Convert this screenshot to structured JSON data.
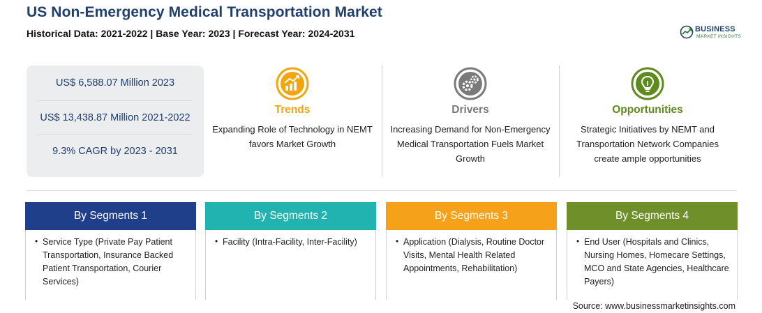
{
  "header": {
    "title": "US Non-Emergency Medical Transportation Market",
    "subtitle": "Historical Data: 2021-2022 | Base Year: 2023 | Forecast Year: 2024-2031"
  },
  "logo": {
    "line1": "BUSINESS",
    "line2": "MARKET INSIGHTS"
  },
  "stats": [
    {
      "text": "US$ 6,588.07 Million 2023"
    },
    {
      "text": "US$ 13,438.87 Million 2021-2022"
    },
    {
      "text": "9.3% CAGR by 2023 - 2031"
    }
  ],
  "info": [
    {
      "heading": "Trends",
      "icon": "trend-chart-icon",
      "color": "#f2a50c",
      "description": "Expanding Role of Technology in NEMT favors Market Growth"
    },
    {
      "heading": "Drivers",
      "icon": "gears-icon",
      "color": "#7a7a7a",
      "description": "Increasing Demand for Non-Emergency Medical Transportation Fuels Market Growth"
    },
    {
      "heading": "Opportunities",
      "icon": "lightbulb-icon",
      "color": "#5e8a1e",
      "description": "Strategic Initiatives by NEMT and Transportation Network Companies create ample opportunities"
    }
  ],
  "segments": [
    {
      "title": "By Segments 1",
      "color": "#1f3f8a",
      "bullet": "•",
      "text": "Service Type (Private Pay Patient Transportation, Insurance Backed Patient Transportation, Courier Services)"
    },
    {
      "title": "By Segments 2",
      "color": "#21b3b0",
      "bullet": "•",
      "text": "Facility (Intra-Facility, Inter-Facility)"
    },
    {
      "title": "By Segments 3",
      "color": "#f5a11a",
      "bullet": "•",
      "text": "Application (Dialysis, Routine Doctor Visits, Mental Health Related Appointments, Rehabilitation)"
    },
    {
      "title": "By Segments 4",
      "color": "#6e8f2a",
      "bullet": "•",
      "text": "End User (Hospitals and Clinics, Nursing Homes, Homecare Settings, MCO and State Agencies, Healthcare Payers)"
    }
  ],
  "footer": {
    "source": "Source: www.businessmarketinsights.com"
  }
}
